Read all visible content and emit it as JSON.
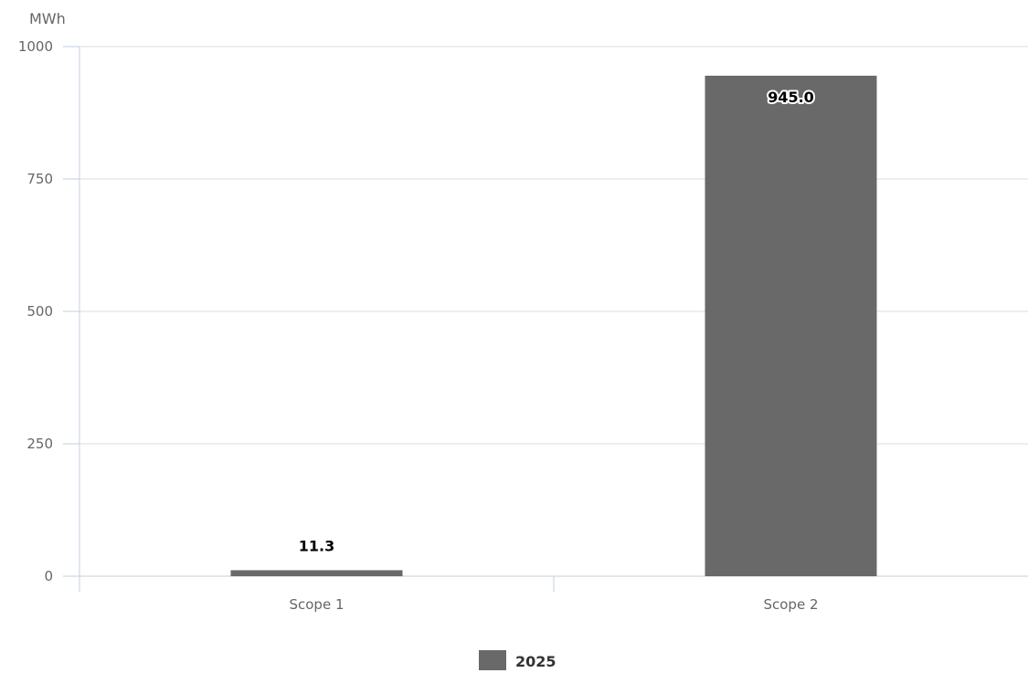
{
  "chart_data": {
    "type": "bar",
    "title": "",
    "xlabel": "",
    "ylabel": "MWh",
    "categories": [
      "Scope 1",
      "Scope 2"
    ],
    "series": [
      {
        "name": "2025",
        "values": [
          11.3,
          945.0
        ],
        "color": "#696969"
      }
    ],
    "data_labels": [
      "11.3",
      "945.0"
    ],
    "ylim": [
      0,
      1000
    ],
    "yticks": [
      0,
      250,
      500,
      750,
      1000
    ],
    "grid": true,
    "legend": "bottom-center"
  },
  "colors": {
    "bar": "#696969",
    "gridline": "#d5dde6",
    "axis": "#c0cfdc",
    "tick_text": "#666666"
  }
}
